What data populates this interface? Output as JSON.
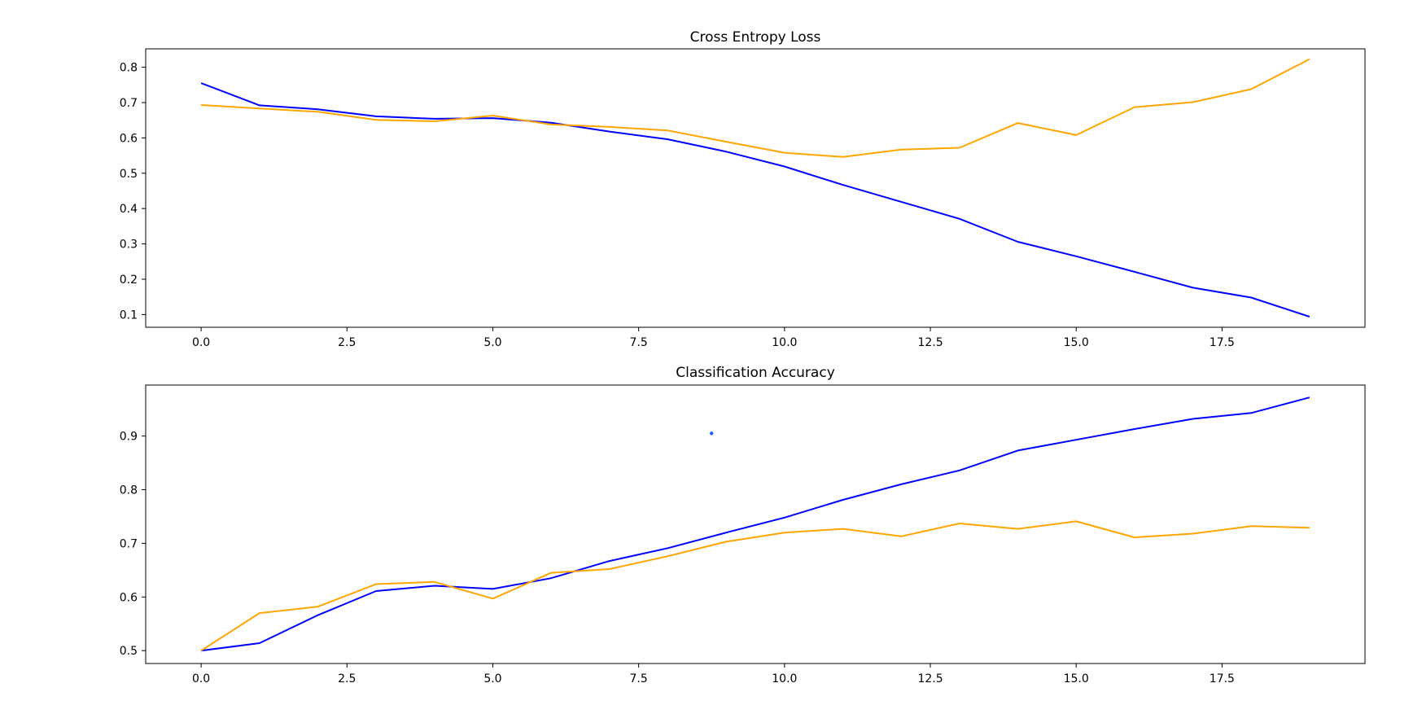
{
  "chart_data": [
    {
      "type": "line",
      "title": "Cross Entropy Loss",
      "xlabel": "",
      "ylabel": "",
      "xlim": [
        -0.95,
        19.95
      ],
      "ylim": [
        0.064,
        0.852
      ],
      "xticks": [
        "0.0",
        "2.5",
        "5.0",
        "7.5",
        "10.0",
        "12.5",
        "15.0",
        "17.5"
      ],
      "yticks": [
        "0.1",
        "0.2",
        "0.3",
        "0.4",
        "0.5",
        "0.6",
        "0.7",
        "0.8"
      ],
      "grid": false,
      "legend": "none",
      "x": [
        0,
        1,
        2,
        3,
        4,
        5,
        6,
        7,
        8,
        9,
        10,
        11,
        12,
        13,
        14,
        15,
        16,
        17,
        18,
        19
      ],
      "series": [
        {
          "color": "#0000ff",
          "values": [
            0.755,
            0.692,
            0.681,
            0.661,
            0.654,
            0.656,
            0.643,
            0.618,
            0.596,
            0.561,
            0.519,
            0.467,
            0.419,
            0.371,
            0.306,
            0.265,
            0.221,
            0.176,
            0.148,
            0.094
          ]
        },
        {
          "color": "#ffa500",
          "values": [
            0.693,
            0.683,
            0.674,
            0.651,
            0.647,
            0.663,
            0.638,
            0.631,
            0.621,
            0.589,
            0.558,
            0.546,
            0.567,
            0.572,
            0.642,
            0.608,
            0.687,
            0.701,
            0.738,
            0.823
          ]
        }
      ]
    },
    {
      "type": "line",
      "title": "Classification Accuracy",
      "xlabel": "",
      "ylabel": "",
      "xlim": [
        -0.95,
        19.95
      ],
      "ylim": [
        0.476,
        0.995
      ],
      "xticks": [
        "0.0",
        "2.5",
        "5.0",
        "7.5",
        "10.0",
        "12.5",
        "15.0",
        "17.5"
      ],
      "yticks": [
        "0.5",
        "0.6",
        "0.7",
        "0.8",
        "0.9"
      ],
      "grid": false,
      "legend": "none",
      "x": [
        0,
        1,
        2,
        3,
        4,
        5,
        6,
        7,
        8,
        9,
        10,
        11,
        12,
        13,
        14,
        15,
        16,
        17,
        18,
        19
      ],
      "series": [
        {
          "color": "#0000ff",
          "values": [
            0.5,
            0.514,
            0.566,
            0.611,
            0.621,
            0.615,
            0.635,
            0.667,
            0.691,
            0.72,
            0.748,
            0.781,
            0.81,
            0.836,
            0.873,
            0.893,
            0.913,
            0.932,
            0.943,
            0.972
          ]
        },
        {
          "color": "#ffa500",
          "values": [
            0.5,
            0.57,
            0.582,
            0.624,
            0.628,
            0.597,
            0.645,
            0.652,
            0.676,
            0.703,
            0.72,
            0.727,
            0.713,
            0.737,
            0.727,
            0.741,
            0.711,
            0.718,
            0.732,
            0.729
          ]
        }
      ],
      "marker": {
        "x": 8.75,
        "y": 0.905,
        "color": "#1f5fff"
      }
    }
  ]
}
